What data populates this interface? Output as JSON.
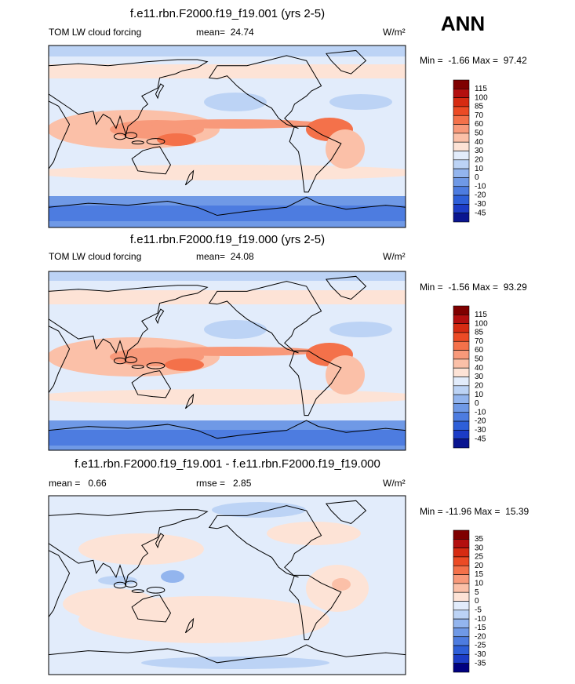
{
  "figure_label": "ANN",
  "panels": [
    {
      "title": "f.e11.rbn.F2000.f19_f19.001 (yrs 2-5)",
      "left_label": "TOM LW cloud forcing",
      "stat1": "mean=  24.74",
      "units": "W/m²",
      "min_max": "Min =  -1.66 Max =  97.42",
      "colorbar": {
        "labels": [
          115,
          100,
          85,
          70,
          60,
          50,
          40,
          30,
          20,
          10,
          0,
          -10,
          -20,
          -30,
          -45
        ],
        "colors": [
          "#7f0000",
          "#b30f0f",
          "#d62b12",
          "#ec4b25",
          "#f4714a",
          "#f8997a",
          "#fbc0a8",
          "#fde3d6",
          "#e2ecfb",
          "#bcd3f5",
          "#93b5ee",
          "#6f99e6",
          "#4d7ce0",
          "#2e5fd8",
          "#1c3cc6",
          "#0a1590"
        ]
      }
    },
    {
      "title": "f.e11.rbn.F2000.f19_f19.000 (yrs 2-5)",
      "left_label": "TOM LW cloud forcing",
      "stat1": "mean=  24.08",
      "units": "W/m²",
      "min_max": "Min =  -1.56 Max =  93.29",
      "colorbar": {
        "labels": [
          115,
          100,
          85,
          70,
          60,
          50,
          40,
          30,
          20,
          10,
          0,
          -10,
          -20,
          -30,
          -45
        ],
        "colors": [
          "#7f0000",
          "#b30f0f",
          "#d62b12",
          "#ec4b25",
          "#f4714a",
          "#f8997a",
          "#fbc0a8",
          "#fde3d6",
          "#e2ecfb",
          "#bcd3f5",
          "#93b5ee",
          "#6f99e6",
          "#4d7ce0",
          "#2e5fd8",
          "#1c3cc6",
          "#0a1590"
        ]
      }
    },
    {
      "title": "f.e11.rbn.F2000.f19_f19.001 - f.e11.rbn.F2000.f19_f19.000",
      "left_label": "mean =   0.66",
      "stat1": "rmse =   2.85",
      "units": "W/m²",
      "min_max": "Min = -11.96 Max =  15.39",
      "colorbar": {
        "labels": [
          35,
          30,
          25,
          20,
          15,
          10,
          5,
          0,
          -5,
          -10,
          -15,
          -20,
          -25,
          -30,
          -35
        ],
        "colors": [
          "#7f0000",
          "#b30f0f",
          "#d62b12",
          "#ec4b25",
          "#f4714a",
          "#f8997a",
          "#fbc0a8",
          "#fde3d6",
          "#e2ecfb",
          "#bcd3f5",
          "#93b5ee",
          "#6f99e6",
          "#4d7ce0",
          "#2e5fd8",
          "#1c3cc6",
          "#000080"
        ]
      }
    }
  ]
}
